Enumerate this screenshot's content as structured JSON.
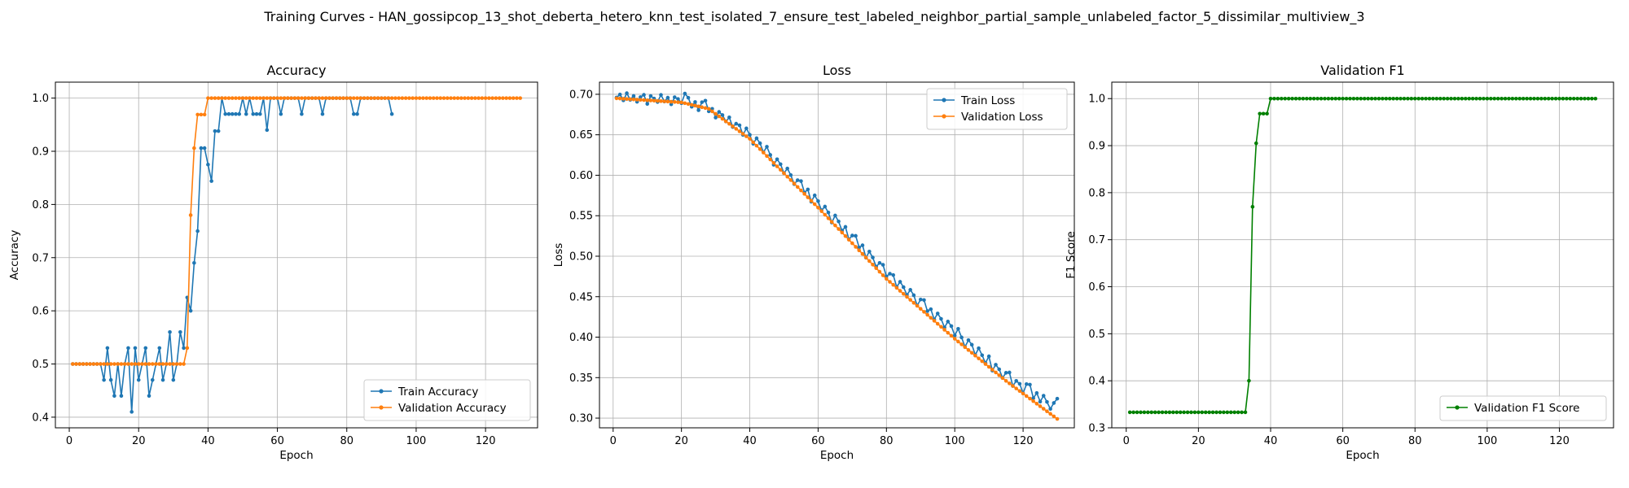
{
  "figure": {
    "suptitle": "Training Curves - HAN_gossipcop_13_shot_deberta_hetero_knn_test_isolated_7_ensure_test_labeled_neighbor_partial_sample_unlabeled_factor_5_dissimilar_multiview_3"
  },
  "chart_data": [
    {
      "type": "line",
      "title": "Accuracy",
      "xlabel": "Epoch",
      "ylabel": "Accuracy",
      "xlim": [
        -4,
        135
      ],
      "ylim": [
        0.38,
        1.03
      ],
      "xticks": [
        0,
        20,
        40,
        60,
        80,
        100,
        120
      ],
      "yticks": [
        0.4,
        0.5,
        0.6,
        0.7,
        0.8,
        0.9,
        1.0
      ],
      "ytick_labels": [
        "0.4",
        "0.5",
        "0.6",
        "0.7",
        "0.8",
        "0.9",
        "1.0"
      ],
      "grid": true,
      "legend_position": "lower-right",
      "series": [
        {
          "name": "Train Accuracy",
          "color": "#1f77b4",
          "x": [
            1,
            2,
            3,
            4,
            5,
            6,
            7,
            8,
            9,
            10,
            11,
            12,
            13,
            14,
            15,
            16,
            17,
            18,
            19,
            20,
            21,
            22,
            23,
            24,
            25,
            26,
            27,
            28,
            29,
            30,
            31,
            32,
            33,
            34,
            35,
            36,
            37,
            38,
            39,
            40,
            41,
            42,
            43,
            44,
            45,
            46,
            47,
            48,
            49,
            50,
            51,
            52,
            53,
            54,
            55,
            56,
            57,
            58,
            59,
            60,
            61,
            62,
            63,
            64,
            65,
            66,
            67,
            68,
            69,
            70,
            71,
            72,
            73,
            74,
            75,
            76,
            77,
            78,
            79,
            80,
            81,
            82,
            83,
            84,
            85,
            86,
            87,
            88,
            89,
            90,
            91,
            92,
            93
          ],
          "values": [
            0.5,
            0.5,
            0.5,
            0.5,
            0.5,
            0.5,
            0.5,
            0.5,
            0.5,
            0.47,
            0.53,
            0.47,
            0.44,
            0.5,
            0.44,
            0.5,
            0.53,
            0.41,
            0.53,
            0.47,
            0.5,
            0.53,
            0.44,
            0.47,
            0.5,
            0.53,
            0.47,
            0.5,
            0.56,
            0.47,
            0.5,
            0.56,
            0.53,
            0.625,
            0.6,
            0.69,
            0.75,
            0.906,
            0.906,
            0.875,
            0.844,
            0.938,
            0.938,
            1.0,
            0.97,
            0.97,
            0.97,
            0.97,
            0.97,
            1.0,
            0.97,
            1.0,
            0.97,
            0.97,
            0.97,
            1.0,
            0.94,
            1.0,
            1.0,
            1.0,
            0.97,
            1.0,
            1.0,
            1.0,
            1.0,
            1.0,
            0.97,
            1.0,
            1.0,
            1.0,
            1.0,
            1.0,
            0.97,
            1.0,
            1.0,
            1.0,
            1.0,
            1.0,
            1.0,
            1.0,
            1.0,
            0.97,
            0.97,
            1.0,
            1.0,
            1.0,
            1.0,
            1.0,
            1.0,
            1.0,
            1.0,
            1.0,
            0.97
          ]
        },
        {
          "name": "Validation Accuracy",
          "color": "#ff7f0e",
          "x_start": 1,
          "x_end": 130,
          "values_head": [
            0.5,
            0.5,
            0.5,
            0.5,
            0.5,
            0.5,
            0.5,
            0.5,
            0.5,
            0.5,
            0.5,
            0.5,
            0.5,
            0.5,
            0.5,
            0.5,
            0.5,
            0.5,
            0.5,
            0.5,
            0.5,
            0.5,
            0.5,
            0.5,
            0.5,
            0.5,
            0.5,
            0.5,
            0.5,
            0.5,
            0.5,
            0.5,
            0.5,
            0.53,
            0.78,
            0.906,
            0.969,
            0.969,
            0.969,
            1.0
          ],
          "values_tail_constant": 1.0
        }
      ]
    },
    {
      "type": "line",
      "title": "Loss",
      "xlabel": "Epoch",
      "ylabel": "Loss",
      "xlim": [
        -4,
        135
      ],
      "ylim": [
        0.288,
        0.715
      ],
      "xticks": [
        0,
        20,
        40,
        60,
        80,
        100,
        120
      ],
      "yticks": [
        0.3,
        0.35,
        0.4,
        0.45,
        0.5,
        0.55,
        0.6,
        0.65,
        0.7
      ],
      "ytick_labels": [
        "0.30",
        "0.35",
        "0.40",
        "0.45",
        "0.50",
        "0.55",
        "0.60",
        "0.65",
        "0.70"
      ],
      "grid": true,
      "legend_position": "upper-right",
      "series": [
        {
          "name": "Train Loss",
          "color": "#1f77b4",
          "x_start": 1,
          "x_end": 130,
          "anchors_x": [
            1,
            20,
            28,
            40,
            60,
            80,
            100,
            115,
            130
          ],
          "anchors_y": [
            0.696,
            0.692,
            0.683,
            0.648,
            0.565,
            0.478,
            0.405,
            0.35,
            0.31
          ],
          "noise": [
            0.0,
            0.004,
            -0.003,
            0.006,
            -0.002,
            0.003,
            -0.004,
            0.002,
            0.005,
            -0.006,
            0.004,
            0.001,
            -0.003,
            0.006,
            -0.002,
            0.003,
            -0.005,
            0.004,
            0.002,
            -0.003,
            0.01,
            0.006,
            -0.004,
            0.003,
            -0.006,
            0.005,
            0.008,
            -0.004,
            0.002,
            -0.006,
            0.004,
            0.003,
            -0.002,
            0.006,
            -0.003,
            0.004,
            0.005,
            -0.004,
            0.007,
            0.002,
            -0.005,
            0.006,
            0.004,
            -0.003,
            0.008,
            0.002,
            -0.006,
            0.005,
            0.003,
            -0.004,
            0.006,
            0.002,
            -0.005,
            0.004,
            0.007,
            -0.003,
            0.005,
            -0.006,
            0.006,
            0.003,
            -0.004,
            0.005,
            0.002,
            -0.006,
            0.007,
            0.004,
            -0.003,
            0.006,
            -0.005,
            0.004,
            0.008,
            -0.002,
            0.005,
            -0.006,
            0.006,
            0.003,
            -0.004,
            0.005,
            0.007,
            -0.003,
            0.004,
            0.006,
            -0.005,
            0.005,
            0.002,
            -0.004,
            0.006,
            0.003,
            -0.006,
            0.005,
            0.008,
            -0.002,
            0.004,
            -0.005,
            0.006,
            0.003,
            -0.004,
            0.007,
            0.005,
            -0.003,
            0.009,
            0.002,
            -0.006,
            0.006,
            0.004,
            -0.005,
            0.007,
            0.002,
            -0.004,
            0.008,
            -0.006,
            0.005,
            0.003,
            -0.004,
            0.006,
            0.009,
            -0.005,
            0.004,
            0.003,
            -0.006,
            0.008,
            0.01,
            -0.004,
            0.005,
            -0.003,
            0.007,
            0.002,
            -0.004,
            0.006,
            0.014
          ]
        },
        {
          "name": "Validation Loss",
          "color": "#ff7f0e",
          "x_start": 1,
          "x_end": 130,
          "anchors_x": [
            1,
            20,
            28,
            40,
            60,
            80,
            100,
            115,
            130
          ],
          "anchors_y": [
            0.695,
            0.69,
            0.682,
            0.645,
            0.56,
            0.472,
            0.398,
            0.346,
            0.299
          ]
        }
      ]
    },
    {
      "type": "line",
      "title": "Validation F1",
      "xlabel": "Epoch",
      "ylabel": "F1 Score",
      "xlim": [
        -4,
        135
      ],
      "ylim": [
        0.3,
        1.035
      ],
      "xticks": [
        0,
        20,
        40,
        60,
        80,
        100,
        120
      ],
      "yticks": [
        0.3,
        0.4,
        0.5,
        0.6,
        0.7,
        0.8,
        0.9,
        1.0
      ],
      "ytick_labels": [
        "0.3",
        "0.4",
        "0.5",
        "0.6",
        "0.7",
        "0.8",
        "0.9",
        "1.0"
      ],
      "grid": true,
      "legend_position": "lower-right",
      "series": [
        {
          "name": "Validation F1 Score",
          "color": "#008000",
          "x_start": 1,
          "x_end": 130,
          "values_head": [
            0.333,
            0.333,
            0.333,
            0.333,
            0.333,
            0.333,
            0.333,
            0.333,
            0.333,
            0.333,
            0.333,
            0.333,
            0.333,
            0.333,
            0.333,
            0.333,
            0.333,
            0.333,
            0.333,
            0.333,
            0.333,
            0.333,
            0.333,
            0.333,
            0.333,
            0.333,
            0.333,
            0.333,
            0.333,
            0.333,
            0.333,
            0.333,
            0.333,
            0.4,
            0.77,
            0.905,
            0.968,
            0.968,
            0.968,
            1.0
          ],
          "values_tail_constant": 1.0
        }
      ]
    }
  ]
}
